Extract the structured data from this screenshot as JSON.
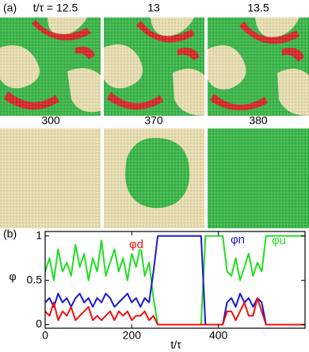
{
  "panel_a": {
    "label": "(a)",
    "snapshots": [
      "t/τ = 12.5",
      "13",
      "13.5",
      "300",
      "370",
      "380"
    ]
  },
  "chart_data": {
    "type": "line",
    "panel_label": "(b)",
    "x_label": "t/τ",
    "y_label": "φ",
    "x": [
      0,
      10,
      20,
      30,
      40,
      50,
      60,
      70,
      80,
      90,
      100,
      110,
      120,
      130,
      140,
      150,
      160,
      170,
      180,
      190,
      200,
      210,
      220,
      230,
      240,
      250,
      260,
      270,
      280,
      290,
      300,
      310,
      320,
      330,
      340,
      350,
      360,
      370,
      380,
      390,
      400,
      410,
      420,
      430,
      440,
      450,
      460,
      470,
      480,
      490,
      500,
      510,
      520,
      530,
      540,
      550,
      560,
      570,
      580,
      590,
      600
    ],
    "series": [
      {
        "name": "φu",
        "color": "#22dd22",
        "values": [
          0.6,
          0.75,
          0.5,
          0.85,
          0.6,
          0.7,
          0.55,
          0.9,
          0.65,
          0.8,
          0.5,
          0.75,
          0.6,
          0.95,
          0.55,
          0.7,
          0.85,
          0.6,
          0.75,
          0.5,
          0.8,
          0.65,
          0.9,
          0.55,
          0.7,
          0.3,
          0,
          0,
          0,
          0,
          0,
          0,
          0,
          0,
          0,
          0,
          0,
          1,
          1,
          1,
          1,
          1,
          0.6,
          0.55,
          0.75,
          0.5,
          0.65,
          0.8,
          0.55,
          0.7,
          0.6,
          1,
          1,
          1,
          1,
          1,
          1,
          1,
          1,
          1,
          1
        ]
      },
      {
        "name": "φn",
        "color": "#1a1acc",
        "values": [
          0.25,
          0.3,
          0.2,
          0.35,
          0.25,
          0.3,
          0.2,
          0.3,
          0.35,
          0.25,
          0.3,
          0.2,
          0.3,
          0.25,
          0.35,
          0.3,
          0.2,
          0.25,
          0.3,
          0.35,
          0.25,
          0.3,
          0.2,
          0.3,
          0.25,
          0.6,
          1,
          1,
          1,
          1,
          1,
          1,
          1,
          1,
          1,
          1,
          1,
          0,
          0,
          0,
          0,
          0,
          0.25,
          0.3,
          0.2,
          0.35,
          0.25,
          0.3,
          0.2,
          0.3,
          0.25,
          0,
          0,
          0,
          0,
          0,
          0,
          0,
          0,
          0,
          0
        ]
      },
      {
        "name": "φd",
        "color": "#ee1111",
        "values": [
          0.15,
          0.1,
          0.25,
          0.05,
          0.15,
          0.1,
          0.2,
          0.05,
          0.1,
          0.15,
          0.2,
          0.05,
          0.1,
          0.05,
          0.1,
          0.15,
          0.05,
          0.15,
          0.1,
          0.15,
          0.05,
          0.1,
          0.1,
          0.15,
          0.05,
          0.1,
          0,
          0,
          0,
          0,
          0,
          0,
          0,
          0,
          0,
          0,
          0,
          0,
          0,
          0,
          0,
          0,
          0.15,
          0.15,
          0.05,
          0.15,
          0.25,
          0.1,
          0.1,
          0.3,
          0.15,
          0,
          0,
          0,
          0,
          0,
          0,
          0,
          0,
          0,
          0
        ]
      }
    ],
    "xlim": [
      0,
      600
    ],
    "ylim": [
      -0.04,
      1.05
    ],
    "xticks": [
      0,
      200,
      400
    ],
    "yticks": [
      0,
      0.5,
      1
    ]
  }
}
